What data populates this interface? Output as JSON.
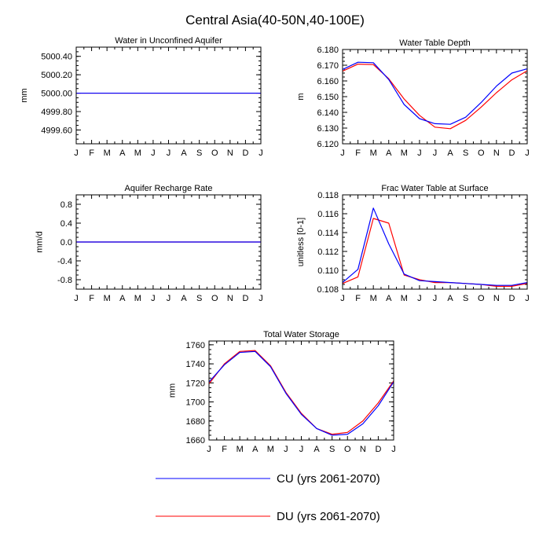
{
  "figure": {
    "title": "Central Asia(40-50N,40-100E)"
  },
  "colors": {
    "CU": "#0000ff",
    "DU": "#ff0000"
  },
  "legend": [
    {
      "label": "CU (yrs 2061-2070)",
      "color": "#0000ff"
    },
    {
      "label": "DU (yrs 2061-2070)",
      "color": "#ff0000"
    }
  ],
  "chart_data": [
    {
      "id": "water-in-unconfined-aquifer",
      "type": "line",
      "title": "Water in Unconfined Aquifer",
      "xlabel": "",
      "ylabel": "mm",
      "categories": [
        "J",
        "F",
        "M",
        "A",
        "M",
        "J",
        "J",
        "A",
        "S",
        "O",
        "N",
        "D",
        "J"
      ],
      "ylim": [
        4999.45,
        5000.5
      ],
      "yticks": [
        4999.6,
        4999.8,
        5000.0,
        5000.2,
        5000.4
      ],
      "ytick_labels": [
        "4999.60",
        "4999.80",
        "5000.00",
        "5000.20",
        "5000.40"
      ],
      "series": [
        {
          "name": "CU (yrs 2061-2070)",
          "values": [
            5000,
            5000,
            5000,
            5000,
            5000,
            5000,
            5000,
            5000,
            5000,
            5000,
            5000,
            5000,
            5000
          ]
        },
        {
          "name": "DU (yrs 2061-2070)",
          "values": [
            5000,
            5000,
            5000,
            5000,
            5000,
            5000,
            5000,
            5000,
            5000,
            5000,
            5000,
            5000,
            5000
          ]
        }
      ]
    },
    {
      "id": "water-table-depth",
      "type": "line",
      "title": "Water Table Depth",
      "xlabel": "",
      "ylabel": "m",
      "categories": [
        "J",
        "F",
        "M",
        "A",
        "M",
        "J",
        "J",
        "A",
        "S",
        "O",
        "N",
        "D",
        "J"
      ],
      "ylim": [
        6.12,
        6.18
      ],
      "yticks": [
        6.12,
        6.13,
        6.14,
        6.15,
        6.16,
        6.17,
        6.18
      ],
      "ytick_labels": [
        "6.120",
        "6.130",
        "6.140",
        "6.150",
        "6.160",
        "6.170",
        "6.180"
      ],
      "series": [
        {
          "name": "CU (yrs 2061-2070)",
          "values": [
            6.1673,
            6.1719,
            6.1716,
            6.1609,
            6.145,
            6.136,
            6.1328,
            6.1324,
            6.1369,
            6.1462,
            6.1567,
            6.165,
            6.1677
          ]
        },
        {
          "name": "DU (yrs 2061-2070)",
          "values": [
            6.1662,
            6.1707,
            6.1704,
            6.1614,
            6.1485,
            6.1381,
            6.1306,
            6.1296,
            6.1349,
            6.1433,
            6.1525,
            6.1607,
            6.1665
          ]
        }
      ]
    },
    {
      "id": "aquifer-recharge-rate",
      "type": "line",
      "title": "Aquifer Recharge Rate",
      "xlabel": "",
      "ylabel": "mm/d",
      "categories": [
        "J",
        "F",
        "M",
        "A",
        "M",
        "J",
        "J",
        "A",
        "S",
        "O",
        "N",
        "D",
        "J"
      ],
      "ylim": [
        -1.0,
        1.0
      ],
      "yticks": [
        -0.8,
        -0.4,
        0.0,
        0.4,
        0.8
      ],
      "ytick_labels": [
        "-0.8",
        "-0.4",
        "0.0",
        "0.4",
        "0.8"
      ],
      "series": [
        {
          "name": "CU (yrs 2061-2070)",
          "values": [
            0,
            0,
            0,
            0,
            0,
            0,
            0,
            0,
            0,
            0,
            0,
            0,
            0
          ]
        },
        {
          "name": "DU (yrs 2061-2070)",
          "values": [
            0,
            0,
            0,
            0,
            0,
            0,
            0,
            0,
            0,
            0,
            0,
            0,
            0
          ]
        }
      ]
    },
    {
      "id": "frac-water-table-at-surface",
      "type": "line",
      "title": "Frac Water Table at Surface",
      "xlabel": "",
      "ylabel": "unitless [0-1]",
      "categories": [
        "J",
        "F",
        "M",
        "A",
        "M",
        "J",
        "J",
        "A",
        "S",
        "O",
        "N",
        "D",
        "J"
      ],
      "ylim": [
        0.108,
        0.118
      ],
      "yticks": [
        0.108,
        0.11,
        0.112,
        0.114,
        0.116,
        0.118
      ],
      "ytick_labels": [
        "0.108",
        "0.110",
        "0.112",
        "0.114",
        "0.116",
        "0.118"
      ],
      "series": [
        {
          "name": "CU (yrs 2061-2070)",
          "values": [
            0.1087,
            0.1101,
            0.1166,
            0.1128,
            0.1096,
            0.1089,
            0.1088,
            0.1087,
            0.1086,
            0.1085,
            0.1084,
            0.1084,
            0.1087
          ]
        },
        {
          "name": "DU (yrs 2061-2070)",
          "values": [
            0.1086,
            0.1093,
            0.1155,
            0.115,
            0.1095,
            0.109,
            0.1087,
            0.1087,
            0.1086,
            0.1085,
            0.1083,
            0.1083,
            0.1086
          ]
        }
      ]
    },
    {
      "id": "total-water-storage",
      "type": "line",
      "title": "Total Water Storage",
      "xlabel": "",
      "ylabel": "mm",
      "categories": [
        "J",
        "F",
        "M",
        "A",
        "M",
        "J",
        "J",
        "A",
        "S",
        "O",
        "N",
        "D",
        "J"
      ],
      "ylim": [
        1660,
        1764
      ],
      "yticks": [
        1660,
        1680,
        1700,
        1720,
        1740,
        1760
      ],
      "ytick_labels": [
        "1660",
        "1680",
        "1700",
        "1720",
        "1740",
        "1760"
      ],
      "series": [
        {
          "name": "CU (yrs 2061-2070)",
          "values": [
            1721,
            1739,
            1752,
            1753,
            1737,
            1709,
            1687,
            1672,
            1665,
            1666,
            1677,
            1696,
            1721
          ]
        },
        {
          "name": "DU (yrs 2061-2070)",
          "values": [
            1719,
            1740,
            1753,
            1754,
            1738,
            1710,
            1688,
            1672,
            1666,
            1668,
            1680,
            1699,
            1722
          ]
        }
      ]
    }
  ]
}
